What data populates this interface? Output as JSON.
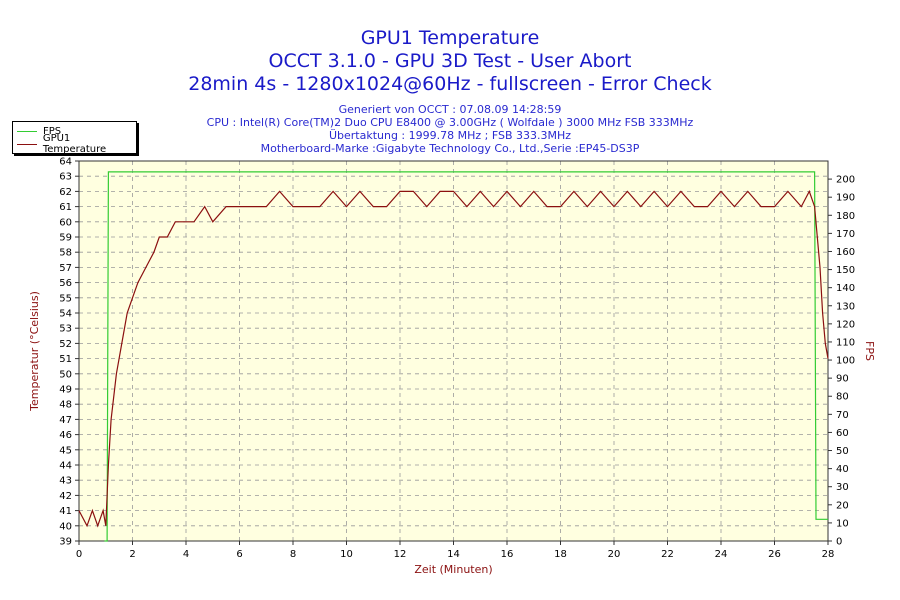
{
  "title": {
    "line1": "GPU1 Temperature",
    "line2": "OCCT 3.1.0 - GPU 3D Test - User Abort",
    "line3": "28min 4s - 1280x1024@60Hz - fullscreen - Error Check"
  },
  "info": [
    "Generiert von OCCT : 07.08.09 14:28:59",
    "CPU : Intel(R) Core(TM)2 Duo CPU E8400 @ 3.00GHz ( Wolfdale ) 3000 MHz FSB 333MHz",
    "Übertaktung : 1999.78 MHz ; FSB 333.3MHz",
    "Motherboard-Marke :Gigabyte Technology Co., Ltd.,Serie :EP45-DS3P"
  ],
  "colors": {
    "fps": "#33cc33",
    "temp": "#8b1010",
    "grid": "#999999",
    "plot_bg": "#ffffe0",
    "title": "#1a1ac8"
  },
  "chart_data": {
    "type": "line",
    "title": "GPU1 Temperature",
    "xlabel": "Zeit (Minuten)",
    "ylabel_left": "Temperatur (°Celsius)",
    "ylabel_right": "FPS",
    "xlim": [
      0,
      28
    ],
    "ylim_left": [
      39,
      64
    ],
    "ylim_right": [
      0,
      210
    ],
    "x_ticks": [
      0,
      2,
      4,
      6,
      8,
      10,
      12,
      14,
      16,
      18,
      20,
      22,
      24,
      26,
      28
    ],
    "y_left_ticks": [
      39,
      40,
      41,
      42,
      43,
      44,
      45,
      46,
      47,
      48,
      49,
      50,
      51,
      52,
      53,
      54,
      55,
      56,
      57,
      58,
      59,
      60,
      61,
      62,
      63,
      64
    ],
    "y_right_ticks": [
      0,
      10,
      20,
      30,
      40,
      50,
      60,
      70,
      80,
      90,
      100,
      110,
      120,
      130,
      140,
      150,
      160,
      170,
      180,
      190,
      200
    ],
    "grid": true,
    "legend_position": "top-left",
    "series": [
      {
        "name": "FPS",
        "axis": "right",
        "x": [
          0.95,
          1.05,
          1.1,
          5,
          10,
          15,
          20,
          25,
          27.5,
          27.55,
          27.9,
          28.0
        ],
        "y": [
          0,
          0,
          204,
          204,
          204,
          204,
          204,
          204,
          204,
          12,
          12,
          12
        ]
      },
      {
        "name": "GPU1 Temperature",
        "axis": "left",
        "x": [
          0,
          0.3,
          0.5,
          0.7,
          0.9,
          1.0,
          1.1,
          1.2,
          1.4,
          1.6,
          1.8,
          2.0,
          2.2,
          2.5,
          2.8,
          3.0,
          3.3,
          3.6,
          3.8,
          4.0,
          4.3,
          4.7,
          5.0,
          5.5,
          6.0,
          6.5,
          7.0,
          7.5,
          8.0,
          8.5,
          9.0,
          9.5,
          10.0,
          10.5,
          11.0,
          11.5,
          12.0,
          12.5,
          13.0,
          13.5,
          14.0,
          14.5,
          15.0,
          15.5,
          16.0,
          16.5,
          17.0,
          17.5,
          18.0,
          18.5,
          19.0,
          19.5,
          20.0,
          20.5,
          21.0,
          21.5,
          22.0,
          22.5,
          23.0,
          23.5,
          24.0,
          24.5,
          25.0,
          25.5,
          26.0,
          26.5,
          27.0,
          27.3,
          27.5,
          27.6,
          27.7,
          27.8,
          27.9,
          28.0
        ],
        "y": [
          41,
          40,
          41,
          40,
          41,
          40,
          44,
          47,
          50,
          52,
          54,
          55,
          56,
          57,
          58,
          59,
          59,
          60,
          60,
          60,
          60,
          61,
          60,
          61,
          61,
          61,
          61,
          62,
          61,
          61,
          61,
          62,
          61,
          62,
          61,
          61,
          62,
          62,
          61,
          62,
          62,
          61,
          62,
          61,
          62,
          61,
          62,
          61,
          61,
          62,
          61,
          62,
          61,
          62,
          61,
          62,
          61,
          62,
          61,
          61,
          62,
          61,
          62,
          61,
          61,
          62,
          61,
          62,
          61,
          59,
          57,
          54,
          52,
          51
        ]
      }
    ]
  }
}
